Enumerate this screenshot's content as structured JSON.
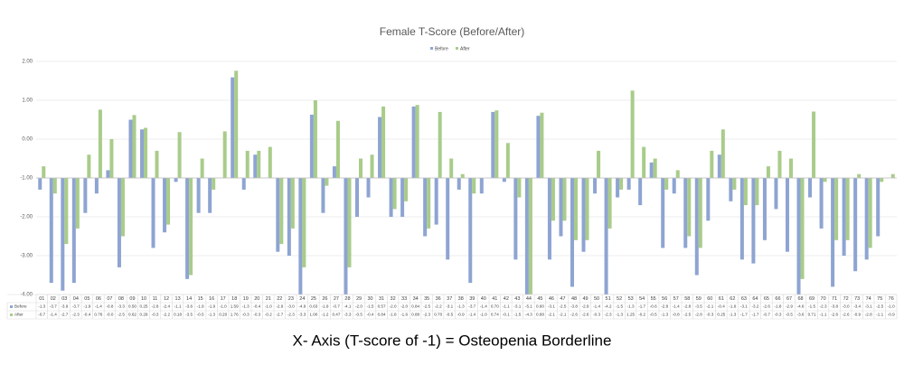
{
  "chart_data": {
    "type": "bar",
    "title": "Female T-Score (Before/After)",
    "caption": "X- Axis (T-score of -1) = Osteopenia Borderline",
    "x_axis_crossing": -1,
    "categories": [
      "01",
      "02",
      "03",
      "04",
      "05",
      "06",
      "07",
      "08",
      "09",
      "10",
      "11",
      "12",
      "13",
      "14",
      "15",
      "16",
      "17",
      "18",
      "19",
      "20",
      "21",
      "22",
      "23",
      "24",
      "25",
      "26",
      "27",
      "28",
      "29",
      "30",
      "31",
      "32",
      "33",
      "34",
      "35",
      "36",
      "37",
      "38",
      "39",
      "40",
      "41",
      "42",
      "43",
      "44",
      "45",
      "46",
      "47",
      "48",
      "49",
      "50",
      "51",
      "52",
      "53",
      "54",
      "55",
      "56",
      "57",
      "58",
      "59",
      "60",
      "61",
      "62",
      "63",
      "64",
      "65",
      "66",
      "67",
      "68",
      "69",
      "70",
      "71",
      "72",
      "73",
      "74",
      "75",
      "76"
    ],
    "series": [
      {
        "name": "Before",
        "color": "#8ea4d2",
        "values": [
          -1.3,
          -3.7,
          -3.9,
          -3.7,
          -1.9,
          -1.4,
          -0.8,
          -3.3,
          0.5,
          0.25,
          -2.8,
          -2.4,
          -1.1,
          -3.6,
          -1.9,
          -1.9,
          -1.0,
          1.59,
          -1.3,
          -0.4,
          -1.0,
          -2.9,
          -3.0,
          -4.9,
          0.63,
          -1.9,
          -0.7,
          -4.1,
          -2.0,
          -1.5,
          0.57,
          -2.0,
          -2.0,
          0.84,
          -2.5,
          -2.2,
          -3.1,
          -1.3,
          -3.7,
          -1.4,
          0.7,
          -1.1,
          -3.1,
          -5.1,
          0.6,
          -3.1,
          -2.5,
          -3.8,
          -2.9,
          -1.4,
          -4.2,
          -1.5,
          -1.3,
          -1.7,
          -0.6,
          -2.8,
          -1.4,
          -2.8,
          -3.5,
          -2.1,
          -0.4,
          -1.6,
          -3.1,
          -3.2,
          -2.6,
          -1.8,
          -2.9,
          -4.6,
          -1.5,
          -2.3,
          -3.8,
          -3.0,
          -3.4,
          -3.1,
          -2.5,
          -1.0
        ],
        "value_labels": [
          "-1.3",
          "-3.7",
          "-3.9",
          "-3.7",
          "-1.9",
          "-1.4",
          "-0.8",
          "-3.3",
          "0.50",
          "0.25",
          "-2.8",
          "-2.4",
          "-1.1",
          "-3.6",
          "-1.9",
          "-1.9",
          "-1.0",
          "1.59",
          "-1.3",
          "-0.4",
          "-1.0",
          "-2.9",
          "-3.0",
          "-4.9",
          "0.63",
          "-1.9",
          "-0.7",
          "-4.1",
          "-2.0",
          "-1.5",
          "0.57",
          "-2.0",
          "-2.0",
          "0.84",
          "-2.5",
          "-2.2",
          "-3.1",
          "-1.3",
          "-3.7",
          "-1.4",
          "0.70",
          "-1.1",
          "-3.1",
          "-5.1",
          "0.60",
          "-3.1",
          "-2.5",
          "-3.8",
          "-2.9",
          "-1.4",
          "-4.2",
          "-1.5",
          "-1.3",
          "-1.7",
          "-0.6",
          "-2.8",
          "-1.4",
          "-2.8",
          "-3.5",
          "-2.1",
          "-0.4",
          "-1.6",
          "-3.1",
          "-3.2",
          "-2.6",
          "-1.8",
          "-2.9",
          "-4.6",
          "-1.5",
          "-2.3",
          "-3.8",
          "-3.0",
          "-3.4",
          "-3.1",
          "-2.5",
          "-1.0"
        ]
      },
      {
        "name": "After",
        "color": "#a9cc8a",
        "values": [
          -0.7,
          -1.4,
          -2.7,
          -2.3,
          -0.4,
          0.76,
          0,
          -2.5,
          0.62,
          0.29,
          -0.3,
          -2.2,
          0.18,
          -3.5,
          -0.5,
          -1.3,
          0.2,
          1.76,
          -0.3,
          -0.3,
          -0.2,
          -2.7,
          -2.3,
          -3.3,
          1.0,
          -1.2,
          0.47,
          -3.3,
          -0.5,
          -0.4,
          0.84,
          -1.8,
          -1.6,
          0.88,
          -2.3,
          0.7,
          -0.5,
          -0.9,
          -1.4,
          -1.0,
          0.74,
          -0.1,
          -1.5,
          -4.3,
          0.68,
          -2.1,
          -2.1,
          -2.6,
          -2.6,
          -0.3,
          -2.3,
          -1.3,
          1.25,
          -0.2,
          -0.5,
          -1.3,
          -0.8,
          -2.5,
          -2.8,
          -0.3,
          0.25,
          -1.3,
          -1.7,
          -1.7,
          -0.7,
          -0.3,
          -0.5,
          -3.6,
          0.71,
          -1.1,
          -2.6,
          -2.6,
          -0.9,
          -2.8,
          -1.1,
          -0.9
        ],
        "value_labels": [
          "-0.7",
          "-1.4",
          "-2.7",
          "-2.3",
          "-0.4",
          "0.76",
          "-0.0",
          "-2.5",
          "0.62",
          "0.29",
          "-0.3",
          "-2.2",
          "0.18",
          "-3.5",
          "-0.5",
          "-1.3",
          "0.20",
          "1.76",
          "-0.3",
          "-0.3",
          "-0.2",
          "-2.7",
          "-2.3",
          "-3.3",
          "1.00",
          "-1.2",
          "0.47",
          "-3.3",
          "-0.5",
          "-0.4",
          "0.84",
          "-1.8",
          "-1.6",
          "0.88",
          "-2.3",
          "0.70",
          "-0.5",
          "-0.9",
          "-1.4",
          "-1.0",
          "0.74",
          "-0.1",
          "-1.5",
          "-4.3",
          "0.68",
          "-2.1",
          "-2.1",
          "-2.6",
          "-2.6",
          "-0.3",
          "-2.3",
          "-1.3",
          "1.25",
          "-0.2",
          "-0.5",
          "-1.3",
          "-0.8",
          "-2.5",
          "-2.8",
          "-0.3",
          "0.25",
          "-1.3",
          "-1.7",
          "-1.7",
          "-0.7",
          "-0.3",
          "-0.5",
          "-3.6",
          "0.71",
          "-1.1",
          "-2.6",
          "-2.6",
          "-0.9",
          "-2.8",
          "-1.1",
          "-0.9"
        ]
      }
    ],
    "ylim": [
      -4,
      2
    ],
    "yticks": [
      {
        "value": -4,
        "label": "-4.00"
      },
      {
        "value": -3,
        "label": "-3.00"
      },
      {
        "value": -2,
        "label": "-2.00"
      },
      {
        "value": -1,
        "label": "-1.00"
      },
      {
        "value": 0,
        "label": "0.00"
      },
      {
        "value": 1,
        "label": "1.00"
      },
      {
        "value": 2,
        "label": "2.00"
      }
    ],
    "grid": true,
    "legend": "top"
  }
}
